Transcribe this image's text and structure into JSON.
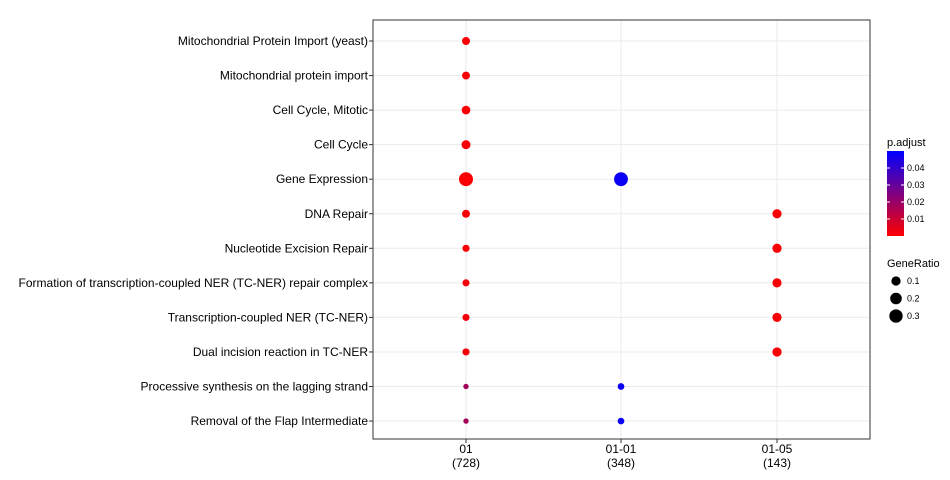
{
  "chart_data": {
    "type": "scatter",
    "categories_y": [
      "Mitochondrial Protein Import (yeast)",
      "Mitochondrial protein import",
      "Cell Cycle, Mitotic",
      "Cell Cycle",
      "Gene Expression",
      "DNA Repair",
      "Nucleotide Excision Repair",
      "Formation of transcription-coupled NER (TC-NER) repair complex",
      "Transcription-coupled NER (TC-NER)",
      "Dual incision reaction in TC-NER",
      "Processive synthesis on the lagging strand",
      "Removal of the Flap Intermediate"
    ],
    "categories_x": [
      {
        "line1": "01",
        "line2": "(728)"
      },
      {
        "line1": "01-01",
        "line2": "(348)"
      },
      {
        "line1": "01-05",
        "line2": "(143)"
      }
    ],
    "points": [
      {
        "x": 0,
        "y": 0,
        "gene_ratio": 0.06,
        "p_adjust": 0.001
      },
      {
        "x": 0,
        "y": 1,
        "gene_ratio": 0.06,
        "p_adjust": 0.001
      },
      {
        "x": 0,
        "y": 2,
        "gene_ratio": 0.08,
        "p_adjust": 0.001
      },
      {
        "x": 0,
        "y": 3,
        "gene_ratio": 0.09,
        "p_adjust": 0.001
      },
      {
        "x": 0,
        "y": 4,
        "gene_ratio": 0.34,
        "p_adjust": 0.001
      },
      {
        "x": 0,
        "y": 5,
        "gene_ratio": 0.06,
        "p_adjust": 0.001
      },
      {
        "x": 0,
        "y": 6,
        "gene_ratio": 0.04,
        "p_adjust": 0.001
      },
      {
        "x": 0,
        "y": 7,
        "gene_ratio": 0.04,
        "p_adjust": 0.002
      },
      {
        "x": 0,
        "y": 8,
        "gene_ratio": 0.04,
        "p_adjust": 0.002
      },
      {
        "x": 0,
        "y": 9,
        "gene_ratio": 0.04,
        "p_adjust": 0.002
      },
      {
        "x": 0,
        "y": 10,
        "gene_ratio": 0.01,
        "p_adjust": 0.018
      },
      {
        "x": 0,
        "y": 11,
        "gene_ratio": 0.01,
        "p_adjust": 0.018
      },
      {
        "x": 1,
        "y": 4,
        "gene_ratio": 0.33,
        "p_adjust": 0.048
      },
      {
        "x": 1,
        "y": 10,
        "gene_ratio": 0.03,
        "p_adjust": 0.048
      },
      {
        "x": 1,
        "y": 11,
        "gene_ratio": 0.03,
        "p_adjust": 0.048
      },
      {
        "x": 2,
        "y": 5,
        "gene_ratio": 0.1,
        "p_adjust": 0.001
      },
      {
        "x": 2,
        "y": 6,
        "gene_ratio": 0.1,
        "p_adjust": 0.001
      },
      {
        "x": 2,
        "y": 7,
        "gene_ratio": 0.1,
        "p_adjust": 0.001
      },
      {
        "x": 2,
        "y": 8,
        "gene_ratio": 0.1,
        "p_adjust": 0.001
      },
      {
        "x": 2,
        "y": 9,
        "gene_ratio": 0.1,
        "p_adjust": 0.001
      }
    ],
    "color_legend": {
      "title": "p.adjust",
      "range": [
        0.0,
        0.05
      ],
      "ticks": [
        0.04,
        0.03,
        0.02,
        0.01
      ],
      "low_color": "#FF0000",
      "high_color": "#0000FF"
    },
    "size_legend": {
      "title": "GeneRatio",
      "ticks": [
        0.1,
        0.2,
        0.3
      ]
    },
    "grid": true,
    "legend_position": "right"
  }
}
